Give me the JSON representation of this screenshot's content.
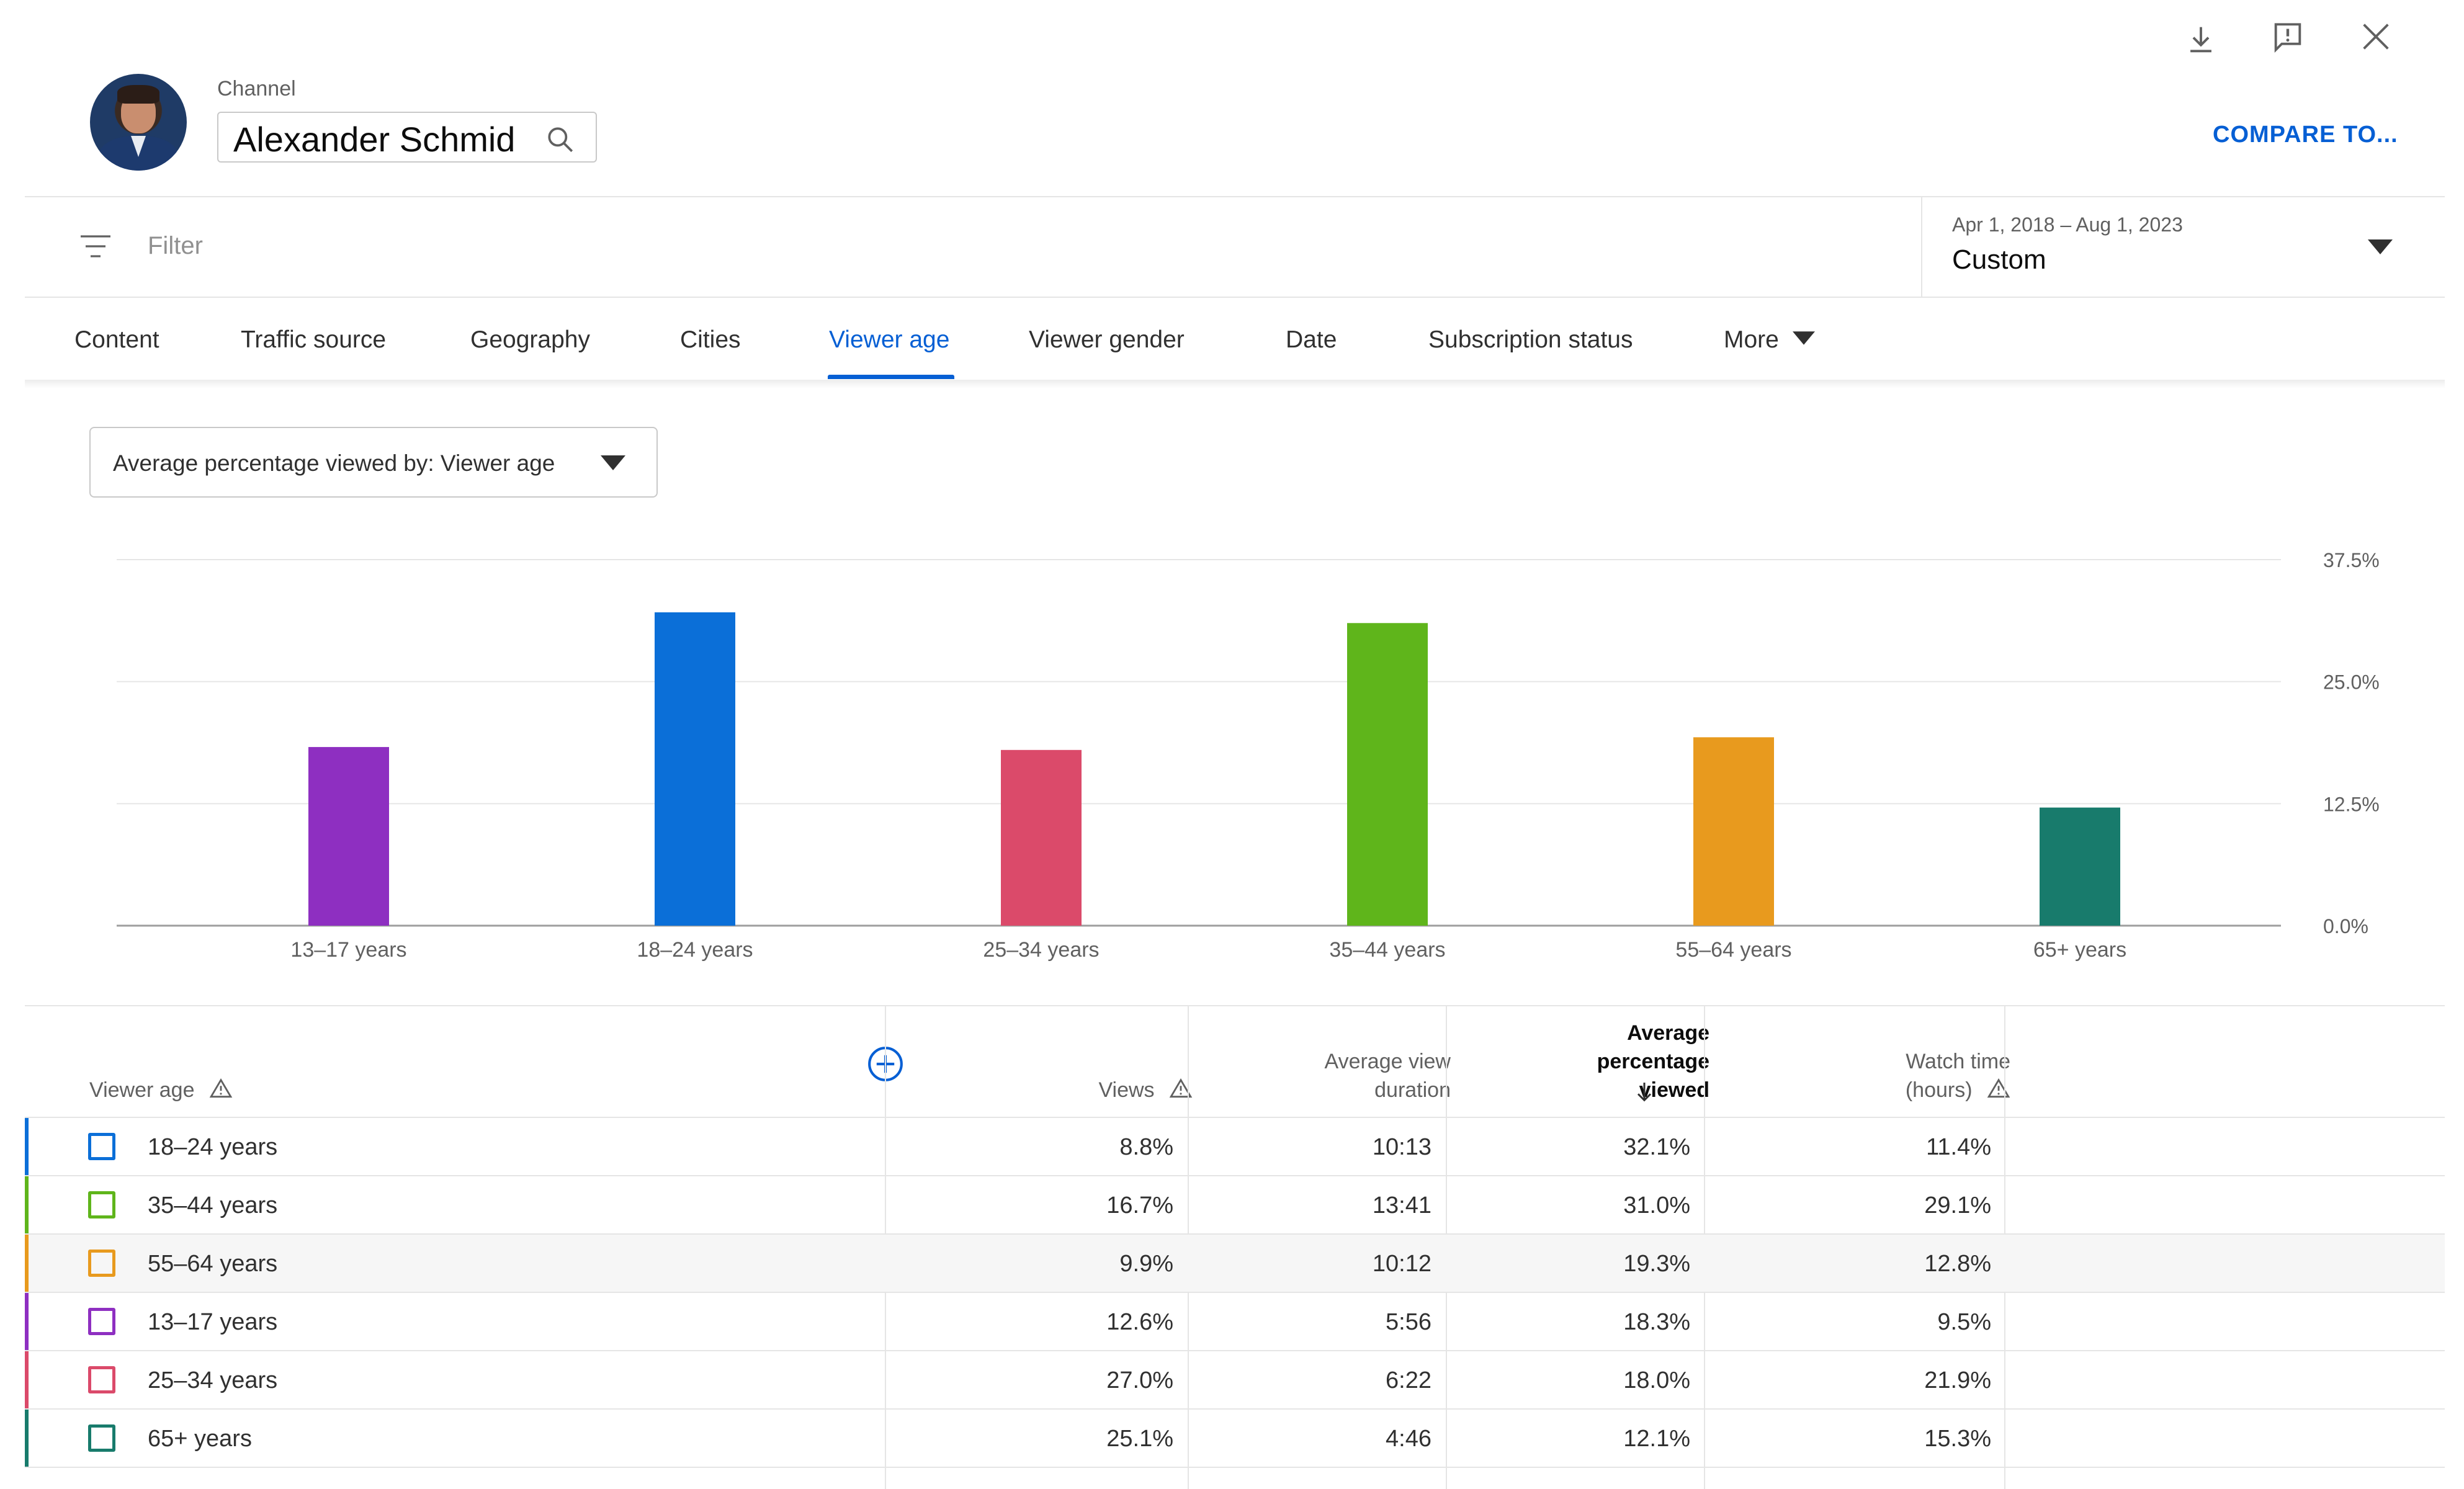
{
  "header": {
    "channel_label": "Channel",
    "channel_name": "Alexander Schmid",
    "compare_label": "COMPARE TO...",
    "icons": [
      "download-icon",
      "feedback-icon",
      "close-icon"
    ]
  },
  "filter": {
    "placeholder": "Filter",
    "date_range": "Apr 1, 2018 – Aug 1, 2023",
    "date_preset": "Custom"
  },
  "tabs": [
    {
      "label": "Content"
    },
    {
      "label": "Traffic source"
    },
    {
      "label": "Geography"
    },
    {
      "label": "Cities"
    },
    {
      "label": "Viewer age",
      "active": true
    },
    {
      "label": "Viewer gender"
    },
    {
      "label": "Date"
    },
    {
      "label": "Subscription status"
    },
    {
      "label": "More"
    }
  ],
  "metric_selector": "Average percentage viewed by: Viewer age",
  "chart_data": {
    "type": "bar",
    "categories": [
      "13–17 years",
      "18–24 years",
      "25–34 years",
      "35–44 years",
      "55–64 years",
      "65+ years"
    ],
    "values": [
      18.3,
      32.1,
      18.0,
      31.0,
      19.3,
      12.1
    ],
    "colors": [
      "#8e2fc1",
      "#0b6fd8",
      "#db4a6a",
      "#5fb51b",
      "#e89a1e",
      "#187b6c"
    ],
    "y_ticks": [
      "0.0%",
      "12.5%",
      "25.0%",
      "37.5%"
    ],
    "ylim": [
      0,
      37.5
    ],
    "y_axis_position": "right",
    "grid": true
  },
  "table": {
    "headers": {
      "dimension": "Viewer age",
      "views": "Views",
      "avg_view_duration": [
        "Average view",
        "duration"
      ],
      "avg_pct_viewed": [
        "Average",
        "percentage",
        "viewed"
      ],
      "watch_time": [
        "Watch time",
        "(hours)"
      ]
    },
    "rows": [
      {
        "label": "18–24 years",
        "color": "#0b6fd8",
        "views": "8.8%",
        "duration": "10:13",
        "pct": "32.1%",
        "watch": "11.4%"
      },
      {
        "label": "35–44 years",
        "color": "#5fb51b",
        "views": "16.7%",
        "duration": "13:41",
        "pct": "31.0%",
        "watch": "29.1%"
      },
      {
        "label": "55–64 years",
        "color": "#e89a1e",
        "views": "9.9%",
        "duration": "10:12",
        "pct": "19.3%",
        "watch": "12.8%"
      },
      {
        "label": "13–17 years",
        "color": "#8e2fc1",
        "views": "12.6%",
        "duration": "5:56",
        "pct": "18.3%",
        "watch": "9.5%"
      },
      {
        "label": "25–34 years",
        "color": "#db4a6a",
        "views": "27.0%",
        "duration": "6:22",
        "pct": "18.0%",
        "watch": "21.9%"
      },
      {
        "label": "65+ years",
        "color": "#187b6c",
        "views": "25.1%",
        "duration": "4:46",
        "pct": "12.1%",
        "watch": "15.3%"
      }
    ]
  }
}
